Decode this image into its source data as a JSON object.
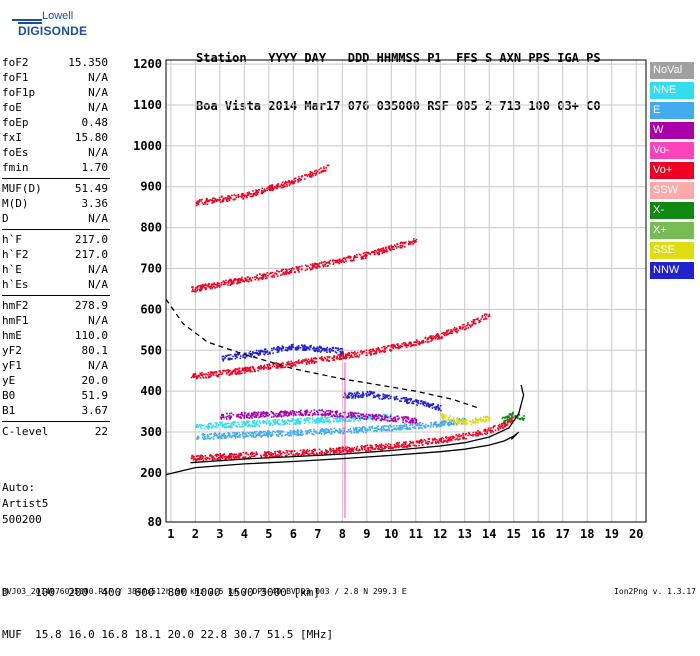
{
  "logo": {
    "line1": "Lowell",
    "line2": "DIGISONDE"
  },
  "header": {
    "labels": "Station   YYYY DAY   DDD HHMMSS P1  FFS S AXN PPS IGA PS",
    "values": "Boa Vista 2014 Mar17 076 035000 RSF 005 2 713 100 03+ C0"
  },
  "params": [
    [
      {
        "k": "foF2",
        "v": "15.350"
      },
      {
        "k": "foF1",
        "v": "N/A"
      },
      {
        "k": "foF1p",
        "v": "N/A"
      },
      {
        "k": "foE",
        "v": "N/A"
      },
      {
        "k": "foEp",
        "v": "0.48"
      },
      {
        "k": "fxI",
        "v": "15.80"
      },
      {
        "k": "foEs",
        "v": "N/A"
      },
      {
        "k": "fmin",
        "v": "1.70"
      }
    ],
    [
      {
        "k": "MUF(D)",
        "v": "51.49"
      },
      {
        "k": "M(D)",
        "v": "3.36"
      },
      {
        "k": "D",
        "v": "N/A"
      }
    ],
    [
      {
        "k": "h`F",
        "v": "217.0"
      },
      {
        "k": "h`F2",
        "v": "217.0"
      },
      {
        "k": "h`E",
        "v": "N/A"
      },
      {
        "k": "h`Es",
        "v": "N/A"
      }
    ],
    [
      {
        "k": "hmF2",
        "v": "278.9"
      },
      {
        "k": "hmF1",
        "v": "N/A"
      },
      {
        "k": "hmE",
        "v": "110.0"
      },
      {
        "k": "yF2",
        "v": "80.1"
      },
      {
        "k": "yF1",
        "v": "N/A"
      },
      {
        "k": "yE",
        "v": "20.0"
      },
      {
        "k": "B0",
        "v": "51.9"
      },
      {
        "k": "B1",
        "v": "3.67"
      }
    ],
    [
      {
        "k": "C-level",
        "v": "22"
      }
    ]
  ],
  "auto": {
    "line1": "Auto:",
    "line2": "Artist5",
    "line3": "500200"
  },
  "legend": [
    {
      "label": "NoVal",
      "color": "#a0a0a0"
    },
    {
      "label": "NNE",
      "color": "#33ddee"
    },
    {
      "label": "E",
      "color": "#44aaee"
    },
    {
      "label": "W",
      "color": "#aa00aa"
    },
    {
      "label": "Vo-",
      "color": "#ff44bb"
    },
    {
      "label": "Vo+",
      "color": "#ee0022"
    },
    {
      "label": "SSW",
      "color": "#ffaaaa"
    },
    {
      "label": "X-",
      "color": "#118811"
    },
    {
      "label": "X+",
      "color": "#77bb55"
    },
    {
      "label": "SSE",
      "color": "#dddd11"
    },
    {
      "label": "NNW",
      "color": "#2222cc"
    }
  ],
  "footer": {
    "line1": "D    100  200  400  600  800 1000 1500 3000 [km]",
    "line2": "MUF  15.8 16.0 16.8 18.1 20.0 22.8 30.7 51.5 [MHz]",
    "file": "BVJ03_2014076035000.RSF / 384fx512h 50 kHz 2.5 km / DPS-4D BVJ03 003 / 2.8 N 299.3 E",
    "version": "Ion2Png v. 1.3.17"
  },
  "chart_data": {
    "type": "scatter",
    "x_ticks": [
      1,
      2,
      3,
      4,
      5,
      6,
      7,
      8,
      9,
      10,
      11,
      12,
      13,
      14,
      15,
      16,
      17,
      18,
      19,
      20
    ],
    "y_ticks": [
      80,
      200,
      300,
      400,
      500,
      600,
      700,
      800,
      900,
      1000,
      1100,
      1200
    ],
    "xlim": [
      0.8,
      20.4
    ],
    "ylim": [
      80,
      1210
    ],
    "grid": true,
    "series": [
      {
        "color": "#ee0022",
        "points": [
          [
            1.8,
            238
          ],
          [
            4,
            245
          ],
          [
            6,
            250
          ],
          [
            8,
            258
          ],
          [
            10,
            268
          ],
          [
            12,
            282
          ],
          [
            13,
            292
          ],
          [
            14,
            306
          ],
          [
            14.6,
            320
          ],
          [
            15.0,
            340
          ]
        ]
      },
      {
        "color": "#ee0022",
        "points": [
          [
            1.8,
            438
          ],
          [
            3,
            445
          ],
          [
            5,
            462
          ],
          [
            7,
            478
          ],
          [
            9,
            496
          ],
          [
            11,
            520
          ],
          [
            12,
            538
          ],
          [
            13,
            560
          ],
          [
            14,
            590
          ]
        ]
      },
      {
        "color": "#ee0022",
        "points": [
          [
            1.8,
            650
          ],
          [
            3,
            664
          ],
          [
            5,
            686
          ],
          [
            7,
            710
          ],
          [
            9,
            735
          ],
          [
            11,
            770
          ]
        ]
      },
      {
        "color": "#ee0022",
        "points": [
          [
            2,
            862
          ],
          [
            4,
            880
          ],
          [
            6,
            915
          ],
          [
            7.4,
            950
          ]
        ]
      },
      {
        "color": "#44aaee",
        "points": [
          [
            2,
            290
          ],
          [
            4,
            295
          ],
          [
            6,
            300
          ],
          [
            8,
            305
          ],
          [
            10,
            312
          ],
          [
            12,
            322
          ],
          [
            13,
            330
          ]
        ]
      },
      {
        "color": "#33ddee",
        "points": [
          [
            2,
            315
          ],
          [
            4,
            322
          ],
          [
            6,
            328
          ],
          [
            8,
            334
          ],
          [
            10,
            340
          ]
        ]
      },
      {
        "color": "#2222cc",
        "points": [
          [
            8,
            390
          ],
          [
            9,
            395
          ],
          [
            10,
            385
          ],
          [
            11,
            375
          ],
          [
            12,
            360
          ]
        ]
      },
      {
        "color": "#aa00aa",
        "points": [
          [
            3,
            340
          ],
          [
            5,
            345
          ],
          [
            7,
            350
          ],
          [
            9,
            340
          ],
          [
            11,
            330
          ]
        ]
      },
      {
        "color": "#2222cc",
        "points": [
          [
            3,
            480
          ],
          [
            5,
            500
          ],
          [
            6,
            510
          ],
          [
            7,
            505
          ],
          [
            8,
            500
          ]
        ]
      },
      {
        "color": "#dddd11",
        "points": [
          [
            12,
            340
          ],
          [
            13,
            325
          ],
          [
            14,
            335
          ]
        ]
      },
      {
        "color": "#118811",
        "points": [
          [
            14.5,
            330
          ],
          [
            15.0,
            345
          ],
          [
            15.4,
            335
          ]
        ]
      }
    ],
    "trace_solid": [
      [
        0.8,
        196
      ],
      [
        2,
        213
      ],
      [
        4,
        222
      ],
      [
        6,
        228
      ],
      [
        8,
        235
      ],
      [
        10,
        243
      ],
      [
        12,
        252
      ],
      [
        13,
        258
      ],
      [
        14,
        268
      ],
      [
        14.6,
        278
      ],
      [
        15.0,
        290
      ],
      [
        15.2,
        300
      ],
      [
        14.9,
        282
      ]
    ],
    "trace_solid2": [
      [
        1.8,
        225
      ],
      [
        4,
        234
      ],
      [
        6,
        240
      ],
      [
        8,
        246
      ],
      [
        10,
        255
      ],
      [
        12,
        266
      ],
      [
        13,
        274
      ],
      [
        14,
        288
      ],
      [
        14.8,
        310
      ],
      [
        15.2,
        345
      ],
      [
        15.4,
        390
      ],
      [
        15.3,
        415
      ]
    ],
    "trace_dashed": [
      [
        0.8,
        625
      ],
      [
        1.5,
        565
      ],
      [
        2.5,
        520
      ],
      [
        4,
        490
      ],
      [
        6,
        455
      ],
      [
        8,
        430
      ],
      [
        9.5,
        415
      ],
      [
        11,
        400
      ],
      [
        12.5,
        380
      ],
      [
        13.5,
        360
      ]
    ]
  }
}
